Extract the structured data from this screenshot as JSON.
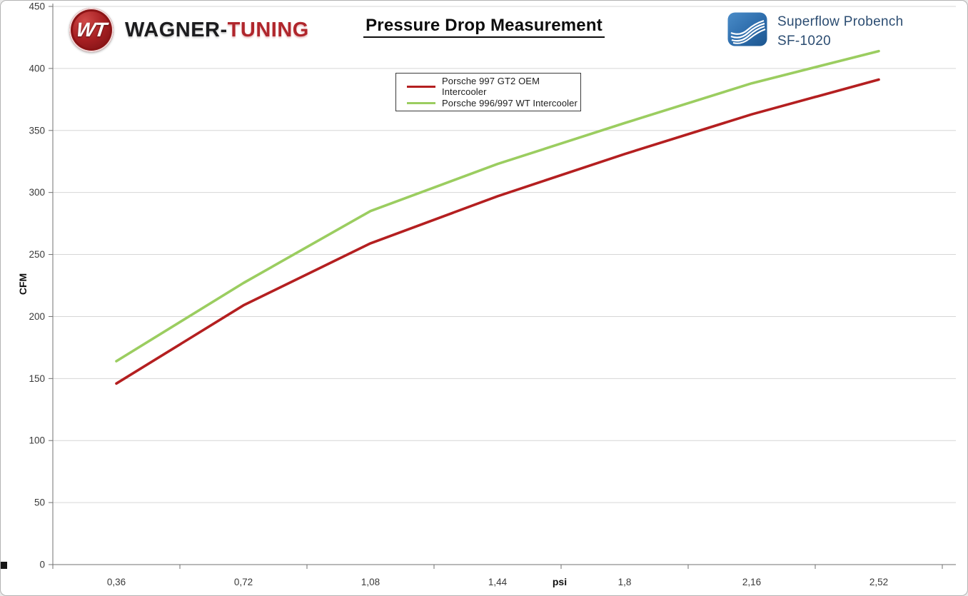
{
  "header": {
    "brand": {
      "badge": "WT",
      "name_dark": "WAGNER-",
      "name_red": "TUNING"
    },
    "title": "Pressure Drop Measurement",
    "bench": {
      "line1": "Superflow Probench",
      "line2": "SF-1020"
    }
  },
  "chart_data": {
    "type": "line",
    "title": "Pressure Drop Measurement",
    "x": [
      0.36,
      0.72,
      1.08,
      1.44,
      1.8,
      2.16,
      2.52
    ],
    "x_tick_labels": [
      "0,36",
      "0,72",
      "1,08",
      "1,44",
      "1,8",
      "2,16",
      "2,52"
    ],
    "xlabel": "psi",
    "ylabel": "CFM",
    "ylim": [
      0,
      450
    ],
    "ytick_step": 50,
    "ytick_labels": [
      "0",
      "50",
      "100",
      "150",
      "200",
      "250",
      "300",
      "350",
      "400",
      "450"
    ],
    "grid": true,
    "legend_position": "top-center",
    "series": [
      {
        "name": "Porsche 997 GT2 OEM Intercooler",
        "color": "#b41f20",
        "values": [
          146,
          209,
          259,
          297,
          331,
          363,
          391
        ]
      },
      {
        "name": "Porsche 996/997 WT Intercooler",
        "color": "#9bcd60",
        "values": [
          164,
          227,
          285,
          323,
          356,
          388,
          414
        ]
      }
    ]
  }
}
